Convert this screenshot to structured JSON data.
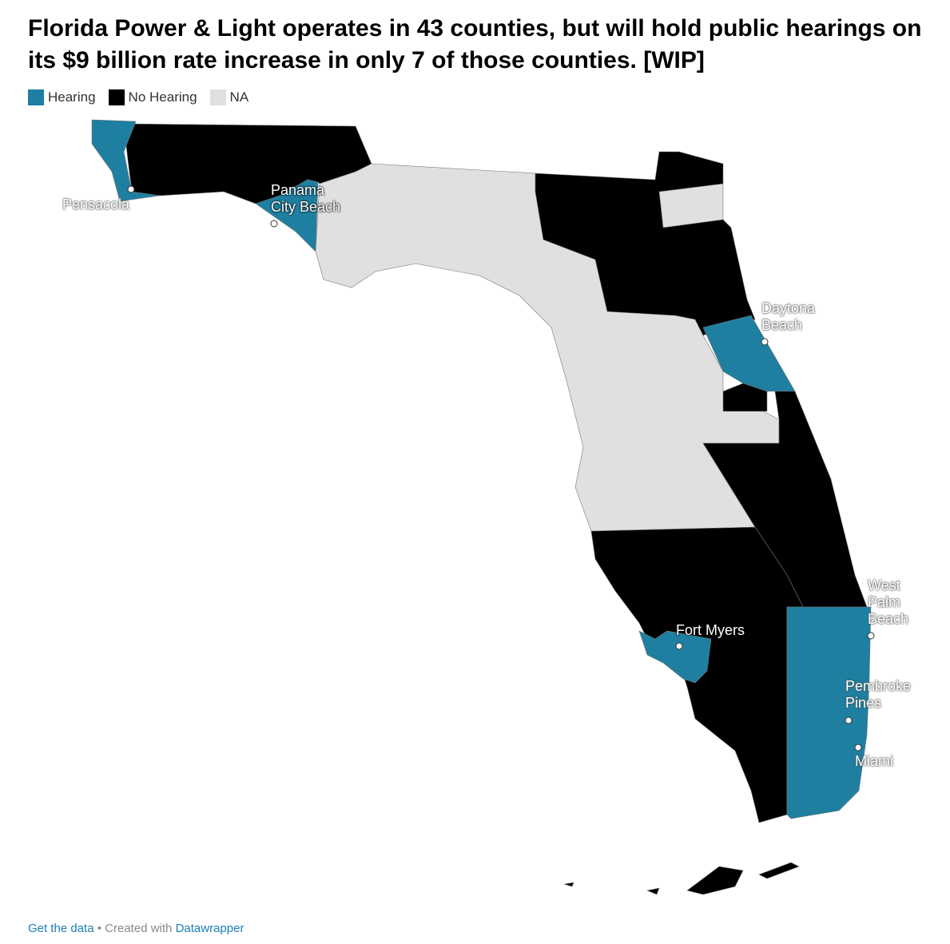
{
  "title": "Florida Power & Light operates in 43 counties, but will hold public hearings on its $9 billion rate increase in only 7 of those counties. [WIP]",
  "legend": [
    {
      "label": "Hearing",
      "color": "#1e7fa0"
    },
    {
      "label": "No Hearing",
      "color": "#000000"
    },
    {
      "label": "NA",
      "color": "#e0e0e0"
    }
  ],
  "cities": [
    "Pensacola",
    "Panama City Beach",
    "Daytona Beach",
    "West Palm Beach",
    "Pembroke Pines",
    "Miami",
    "Fort Myers"
  ],
  "footer": {
    "data_link": "Get the data",
    "separator": "•",
    "credit": "Created with",
    "tool_link": "Datawrapper"
  }
}
